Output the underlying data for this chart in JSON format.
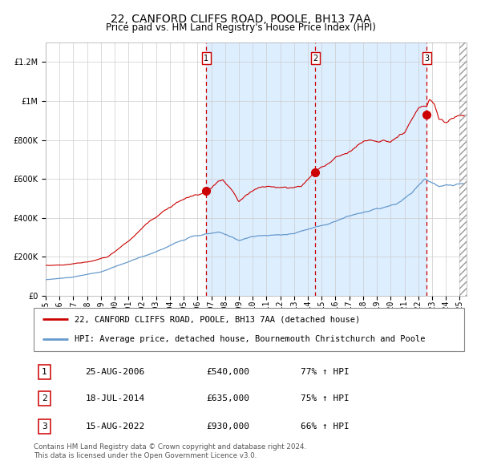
{
  "title": "22, CANFORD CLIFFS ROAD, POOLE, BH13 7AA",
  "subtitle": "Price paid vs. HM Land Registry's House Price Index (HPI)",
  "legend_line1": "22, CANFORD CLIFFS ROAD, POOLE, BH13 7AA (detached house)",
  "legend_line2": "HPI: Average price, detached house, Bournemouth Christchurch and Poole",
  "footer1": "Contains HM Land Registry data © Crown copyright and database right 2024.",
  "footer2": "This data is licensed under the Open Government Licence v3.0.",
  "sales": [
    {
      "num": 1,
      "date": "25-AUG-2006",
      "price": 540000,
      "pct": "77%",
      "dir": "↑"
    },
    {
      "num": 2,
      "date": "18-JUL-2014",
      "price": 635000,
      "pct": "75%",
      "dir": "↑"
    },
    {
      "num": 3,
      "date": "15-AUG-2022",
      "price": 930000,
      "pct": "66%",
      "dir": "↑"
    }
  ],
  "sale_dates_decimal": [
    2006.647,
    2014.543,
    2022.623
  ],
  "ylim": [
    0,
    1300000
  ],
  "xlim_start": 1995.0,
  "xlim_end": 2025.5,
  "background_color": "#ffffff",
  "plot_bg_color": "#ffffff",
  "shaded_region": [
    2006.647,
    2022.623
  ],
  "shaded_color": "#ddeeff",
  "grid_color": "#cccccc",
  "red_line_color": "#cc0000",
  "blue_line_color": "#6699cc",
  "dashed_line_color": "#cc0000",
  "title_fontsize": 10,
  "subtitle_fontsize": 8.5,
  "tick_fontsize": 7,
  "hpi_waypoints": [
    [
      1995.0,
      82000
    ],
    [
      1997.0,
      95000
    ],
    [
      1999.0,
      120000
    ],
    [
      2001.0,
      170000
    ],
    [
      2003.0,
      220000
    ],
    [
      2004.5,
      270000
    ],
    [
      2005.5,
      295000
    ],
    [
      2007.5,
      315000
    ],
    [
      2009.0,
      275000
    ],
    [
      2010.0,
      295000
    ],
    [
      2012.0,
      300000
    ],
    [
      2013.0,
      310000
    ],
    [
      2015.0,
      350000
    ],
    [
      2017.0,
      400000
    ],
    [
      2018.0,
      420000
    ],
    [
      2019.5,
      440000
    ],
    [
      2020.5,
      455000
    ],
    [
      2021.5,
      500000
    ],
    [
      2022.5,
      575000
    ],
    [
      2023.5,
      530000
    ],
    [
      2025.0,
      540000
    ]
  ],
  "red_waypoints": [
    [
      1995.0,
      155000
    ],
    [
      1996.5,
      160000
    ],
    [
      1998.0,
      175000
    ],
    [
      1999.5,
      200000
    ],
    [
      2001.0,
      280000
    ],
    [
      2002.5,
      380000
    ],
    [
      2003.5,
      440000
    ],
    [
      2004.5,
      490000
    ],
    [
      2005.5,
      520000
    ],
    [
      2006.647,
      540000
    ],
    [
      2007.5,
      590000
    ],
    [
      2007.8,
      600000
    ],
    [
      2008.5,
      540000
    ],
    [
      2009.0,
      480000
    ],
    [
      2009.5,
      510000
    ],
    [
      2010.5,
      545000
    ],
    [
      2011.5,
      555000
    ],
    [
      2012.5,
      545000
    ],
    [
      2013.0,
      550000
    ],
    [
      2013.5,
      555000
    ],
    [
      2014.543,
      635000
    ],
    [
      2015.0,
      660000
    ],
    [
      2016.0,
      700000
    ],
    [
      2017.0,
      740000
    ],
    [
      2018.0,
      790000
    ],
    [
      2018.5,
      800000
    ],
    [
      2019.0,
      795000
    ],
    [
      2019.5,
      800000
    ],
    [
      2020.0,
      790000
    ],
    [
      2020.5,
      800000
    ],
    [
      2021.0,
      820000
    ],
    [
      2021.5,
      870000
    ],
    [
      2022.0,
      920000
    ],
    [
      2022.623,
      930000
    ],
    [
      2022.8,
      970000
    ],
    [
      2023.0,
      960000
    ],
    [
      2023.2,
      940000
    ],
    [
      2023.5,
      870000
    ],
    [
      2024.0,
      850000
    ],
    [
      2024.5,
      870000
    ],
    [
      2025.0,
      890000
    ]
  ]
}
